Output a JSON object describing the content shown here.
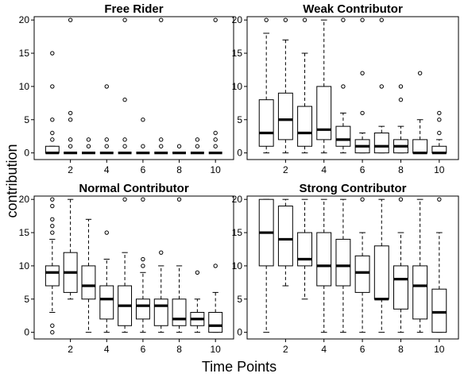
{
  "chart_data": {
    "type": "box",
    "xlabel": "Time Points",
    "ylabel": "contribution",
    "x_ticks": [
      2,
      4,
      6,
      8,
      10
    ],
    "y_ticks": [
      0,
      5,
      10,
      15,
      20
    ],
    "xlim": [
      0,
      11
    ],
    "ylim": [
      -1,
      20.5
    ],
    "panels": [
      {
        "title": "Free Rider",
        "boxes": [
          {
            "x": 1,
            "q1": 0,
            "median": 0,
            "q3": 1,
            "lower": 0,
            "upper": 1,
            "outliers": [
              2,
              3,
              5,
              10,
              15
            ]
          },
          {
            "x": 2,
            "q1": 0,
            "median": 0,
            "q3": 0,
            "lower": 0,
            "upper": 0,
            "outliers": [
              1,
              2,
              5,
              6,
              20
            ]
          },
          {
            "x": 3,
            "q1": 0,
            "median": 0,
            "q3": 0,
            "lower": 0,
            "upper": 0,
            "outliers": [
              1,
              2
            ]
          },
          {
            "x": 4,
            "q1": 0,
            "median": 0,
            "q3": 0,
            "lower": 0,
            "upper": 0,
            "outliers": [
              1,
              2,
              10
            ]
          },
          {
            "x": 5,
            "q1": 0,
            "median": 0,
            "q3": 0,
            "lower": 0,
            "upper": 0,
            "outliers": [
              1,
              2,
              8,
              20
            ]
          },
          {
            "x": 6,
            "q1": 0,
            "median": 0,
            "q3": 0,
            "lower": 0,
            "upper": 0,
            "outliers": [
              1,
              5
            ]
          },
          {
            "x": 7,
            "q1": 0,
            "median": 0,
            "q3": 0,
            "lower": 0,
            "upper": 0,
            "outliers": [
              1,
              2,
              20
            ]
          },
          {
            "x": 8,
            "q1": 0,
            "median": 0,
            "q3": 0,
            "lower": 0,
            "upper": 0,
            "outliers": [
              1
            ]
          },
          {
            "x": 9,
            "q1": 0,
            "median": 0,
            "q3": 0,
            "lower": 0,
            "upper": 0,
            "outliers": [
              1,
              2
            ]
          },
          {
            "x": 10,
            "q1": 0,
            "median": 0,
            "q3": 0,
            "lower": 0,
            "upper": 0,
            "outliers": [
              1,
              2,
              3,
              20
            ]
          }
        ]
      },
      {
        "title": "Weak Contributor",
        "boxes": [
          {
            "x": 1,
            "q1": 1,
            "median": 3,
            "q3": 8,
            "lower": 0,
            "upper": 18,
            "outliers": [
              20
            ]
          },
          {
            "x": 2,
            "q1": 2,
            "median": 5,
            "q3": 9,
            "lower": 0,
            "upper": 17,
            "outliers": [
              20
            ]
          },
          {
            "x": 3,
            "q1": 1,
            "median": 3,
            "q3": 7,
            "lower": 0,
            "upper": 15,
            "outliers": [
              20
            ]
          },
          {
            "x": 4,
            "q1": 2,
            "median": 3.5,
            "q3": 10,
            "lower": 0,
            "upper": 20,
            "outliers": []
          },
          {
            "x": 5,
            "q1": 1,
            "median": 2,
            "q3": 4,
            "lower": 0,
            "upper": 6,
            "outliers": [
              10,
              20
            ]
          },
          {
            "x": 6,
            "q1": 0,
            "median": 1,
            "q3": 2,
            "lower": 0,
            "upper": 3,
            "outliers": [
              6,
              12,
              20
            ]
          },
          {
            "x": 7,
            "q1": 0,
            "median": 1,
            "q3": 3,
            "lower": 0,
            "upper": 4,
            "outliers": [
              10,
              20
            ]
          },
          {
            "x": 8,
            "q1": 0,
            "median": 1,
            "q3": 2,
            "lower": 0,
            "upper": 4,
            "outliers": [
              8,
              10
            ]
          },
          {
            "x": 9,
            "q1": 0,
            "median": 0,
            "q3": 2,
            "lower": 0,
            "upper": 5,
            "outliers": [
              12
            ]
          },
          {
            "x": 10,
            "q1": 0,
            "median": 0,
            "q3": 1,
            "lower": 0,
            "upper": 2,
            "outliers": [
              3,
              5,
              6
            ]
          }
        ]
      },
      {
        "title": "Normal Contributor",
        "boxes": [
          {
            "x": 1,
            "q1": 7,
            "median": 9,
            "q3": 10,
            "lower": 3,
            "upper": 14,
            "outliers": [
              0,
              1,
              15,
              16,
              17,
              19,
              20
            ]
          },
          {
            "x": 2,
            "q1": 6,
            "median": 9,
            "q3": 12,
            "lower": 5,
            "upper": 20,
            "outliers": []
          },
          {
            "x": 3,
            "q1": 5,
            "median": 7,
            "q3": 10,
            "lower": 0,
            "upper": 17,
            "outliers": []
          },
          {
            "x": 4,
            "q1": 2,
            "median": 5,
            "q3": 7,
            "lower": 0,
            "upper": 11,
            "outliers": [
              15
            ]
          },
          {
            "x": 5,
            "q1": 1,
            "median": 4,
            "q3": 7,
            "lower": 0,
            "upper": 12,
            "outliers": [
              20
            ]
          },
          {
            "x": 6,
            "q1": 2,
            "median": 4,
            "q3": 5,
            "lower": 0,
            "upper": 9,
            "outliers": [
              10,
              11,
              20
            ]
          },
          {
            "x": 7,
            "q1": 1,
            "median": 4,
            "q3": 5,
            "lower": 0,
            "upper": 10,
            "outliers": [
              12
            ]
          },
          {
            "x": 8,
            "q1": 1,
            "median": 2,
            "q3": 5,
            "lower": 0,
            "upper": 10,
            "outliers": [
              20
            ]
          },
          {
            "x": 9,
            "q1": 1,
            "median": 2,
            "q3": 3,
            "lower": 0,
            "upper": 5,
            "outliers": [
              9
            ]
          },
          {
            "x": 10,
            "q1": 0,
            "median": 1,
            "q3": 3,
            "lower": 0,
            "upper": 6,
            "outliers": [
              10
            ]
          }
        ]
      },
      {
        "title": "Strong Contributor",
        "boxes": [
          {
            "x": 1,
            "q1": 10,
            "median": 15,
            "q3": 20,
            "lower": 0,
            "upper": 20,
            "outliers": []
          },
          {
            "x": 2,
            "q1": 10,
            "median": 14,
            "q3": 19,
            "lower": 7,
            "upper": 20,
            "outliers": []
          },
          {
            "x": 3,
            "q1": 10,
            "median": 11,
            "q3": 15,
            "lower": 5,
            "upper": 20,
            "outliers": []
          },
          {
            "x": 4,
            "q1": 7,
            "median": 10,
            "q3": 15,
            "lower": 0,
            "upper": 20,
            "outliers": []
          },
          {
            "x": 5,
            "q1": 7,
            "median": 10,
            "q3": 14,
            "lower": 0,
            "upper": 20,
            "outliers": []
          },
          {
            "x": 6,
            "q1": 6,
            "median": 9,
            "q3": 11.5,
            "lower": 0,
            "upper": 15,
            "outliers": [
              20
            ]
          },
          {
            "x": 7,
            "q1": 5,
            "median": 5,
            "q3": 13,
            "lower": 0,
            "upper": 20,
            "outliers": []
          },
          {
            "x": 8,
            "q1": 3.5,
            "median": 8,
            "q3": 10,
            "lower": 0,
            "upper": 15,
            "outliers": [
              20
            ]
          },
          {
            "x": 9,
            "q1": 2,
            "median": 7,
            "q3": 10,
            "lower": 0,
            "upper": 20,
            "outliers": []
          },
          {
            "x": 10,
            "q1": 0,
            "median": 3,
            "q3": 6.5,
            "lower": 0,
            "upper": 15,
            "outliers": [
              20
            ]
          }
        ]
      }
    ]
  }
}
